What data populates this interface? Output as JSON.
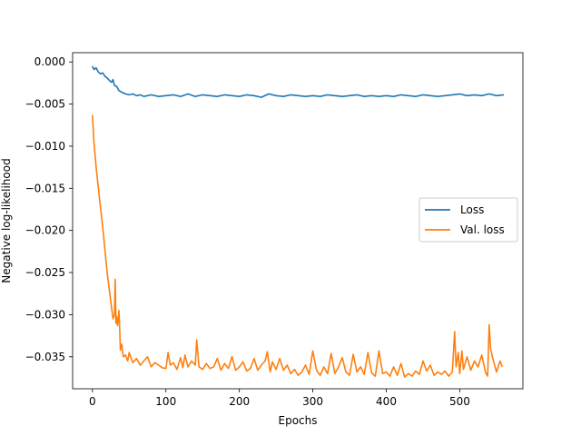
{
  "chart_data": {
    "type": "line",
    "title": "",
    "xlabel": "Epochs",
    "ylabel": "Negative log-likelihood",
    "xlim": [
      -27,
      586
    ],
    "ylim": [
      -0.0388,
      0.0011
    ],
    "grid": false,
    "legend": {
      "placement": "center-right"
    },
    "x_ticks": [
      0,
      100,
      200,
      300,
      400,
      500
    ],
    "x_tick_labels": [
      "0",
      "100",
      "200",
      "300",
      "400",
      "500"
    ],
    "y_ticks": [
      0.0,
      -0.005,
      -0.01,
      -0.015,
      -0.02,
      -0.025,
      -0.03,
      -0.035
    ],
    "y_tick_labels": [
      "0.000",
      "−0.005",
      "−0.010",
      "−0.015",
      "−0.020",
      "−0.025",
      "−0.030",
      "−0.035"
    ],
    "series": [
      {
        "name": "Loss",
        "color": "#1f77b4",
        "x": [
          0,
          2,
          5,
          8,
          11,
          14,
          17,
          20,
          23,
          26,
          28,
          30,
          33,
          36,
          40,
          45,
          50,
          55,
          60,
          65,
          70,
          80,
          90,
          100,
          110,
          120,
          130,
          140,
          150,
          160,
          170,
          180,
          190,
          200,
          210,
          220,
          230,
          240,
          250,
          260,
          270,
          280,
          290,
          300,
          310,
          320,
          330,
          340,
          350,
          360,
          370,
          380,
          390,
          400,
          410,
          420,
          430,
          440,
          450,
          460,
          470,
          480,
          490,
          500,
          510,
          520,
          530,
          540,
          550,
          560
        ],
        "y": [
          -0.0005,
          -0.0009,
          -0.0007,
          -0.0012,
          -0.0014,
          -0.0013,
          -0.0017,
          -0.0019,
          -0.0022,
          -0.0024,
          -0.0021,
          -0.0028,
          -0.0029,
          -0.0034,
          -0.0036,
          -0.0038,
          -0.0039,
          -0.0038,
          -0.004,
          -0.0039,
          -0.0041,
          -0.0039,
          -0.0041,
          -0.004,
          -0.0039,
          -0.0041,
          -0.0038,
          -0.0041,
          -0.0039,
          -0.004,
          -0.0041,
          -0.0039,
          -0.004,
          -0.0041,
          -0.0039,
          -0.004,
          -0.0042,
          -0.0038,
          -0.004,
          -0.0041,
          -0.0039,
          -0.004,
          -0.0041,
          -0.004,
          -0.0041,
          -0.0039,
          -0.004,
          -0.0041,
          -0.004,
          -0.0039,
          -0.0041,
          -0.004,
          -0.0041,
          -0.004,
          -0.0041,
          -0.0039,
          -0.004,
          -0.0041,
          -0.0039,
          -0.004,
          -0.0041,
          -0.004,
          -0.0039,
          -0.0038,
          -0.004,
          -0.0039,
          -0.004,
          -0.0038,
          -0.004,
          -0.0039
        ]
      },
      {
        "name": "Val. loss",
        "color": "#ff7f0e",
        "x": [
          0,
          2,
          5,
          10,
          15,
          20,
          25,
          28,
          30,
          31,
          32,
          33,
          34,
          35,
          36,
          37,
          38,
          40,
          42,
          45,
          48,
          50,
          55,
          60,
          65,
          70,
          75,
          80,
          85,
          90,
          95,
          100,
          103,
          106,
          110,
          115,
          120,
          123,
          126,
          130,
          135,
          140,
          142,
          145,
          150,
          155,
          160,
          165,
          170,
          175,
          180,
          185,
          190,
          195,
          200,
          205,
          210,
          215,
          220,
          225,
          230,
          235,
          238,
          242,
          245,
          250,
          255,
          260,
          265,
          270,
          275,
          280,
          285,
          290,
          295,
          300,
          305,
          310,
          315,
          320,
          325,
          330,
          335,
          340,
          345,
          350,
          355,
          360,
          365,
          370,
          375,
          380,
          385,
          390,
          395,
          400,
          405,
          410,
          415,
          420,
          425,
          430,
          435,
          440,
          445,
          450,
          455,
          460,
          465,
          470,
          475,
          480,
          485,
          490,
          493,
          495,
          498,
          500,
          503,
          505,
          510,
          515,
          520,
          525,
          530,
          535,
          538,
          540,
          542,
          545,
          550,
          555,
          558
        ],
        "y": [
          -0.0063,
          -0.0095,
          -0.0125,
          -0.0165,
          -0.0205,
          -0.025,
          -0.0285,
          -0.0305,
          -0.03,
          -0.0258,
          -0.031,
          -0.0302,
          -0.0313,
          -0.0308,
          -0.0295,
          -0.0315,
          -0.0342,
          -0.0335,
          -0.035,
          -0.0348,
          -0.0355,
          -0.0345,
          -0.0357,
          -0.0352,
          -0.036,
          -0.0355,
          -0.035,
          -0.0362,
          -0.0357,
          -0.036,
          -0.0363,
          -0.0364,
          -0.0345,
          -0.036,
          -0.0357,
          -0.0365,
          -0.0351,
          -0.0363,
          -0.0348,
          -0.0362,
          -0.0355,
          -0.036,
          -0.033,
          -0.0362,
          -0.0365,
          -0.0358,
          -0.0364,
          -0.0362,
          -0.0352,
          -0.0366,
          -0.0358,
          -0.0364,
          -0.035,
          -0.0366,
          -0.0362,
          -0.0356,
          -0.0367,
          -0.0364,
          -0.0352,
          -0.0366,
          -0.036,
          -0.0355,
          -0.0344,
          -0.0368,
          -0.0356,
          -0.0365,
          -0.0352,
          -0.0366,
          -0.036,
          -0.037,
          -0.0365,
          -0.0372,
          -0.0368,
          -0.036,
          -0.0371,
          -0.0343,
          -0.0366,
          -0.0372,
          -0.0362,
          -0.037,
          -0.0346,
          -0.037,
          -0.0362,
          -0.0351,
          -0.0368,
          -0.0372,
          -0.0347,
          -0.0368,
          -0.0362,
          -0.0371,
          -0.0345,
          -0.0369,
          -0.0373,
          -0.0343,
          -0.037,
          -0.0368,
          -0.0373,
          -0.0362,
          -0.0372,
          -0.0358,
          -0.0374,
          -0.037,
          -0.0373,
          -0.0367,
          -0.0371,
          -0.0355,
          -0.0367,
          -0.036,
          -0.0372,
          -0.0368,
          -0.0371,
          -0.0367,
          -0.0373,
          -0.0368,
          -0.032,
          -0.0362,
          -0.0345,
          -0.037,
          -0.0343,
          -0.0365,
          -0.035,
          -0.0366,
          -0.0355,
          -0.0362,
          -0.0348,
          -0.0368,
          -0.0373,
          -0.0312,
          -0.034,
          -0.0352,
          -0.0368,
          -0.0355,
          -0.0362
        ]
      }
    ]
  }
}
